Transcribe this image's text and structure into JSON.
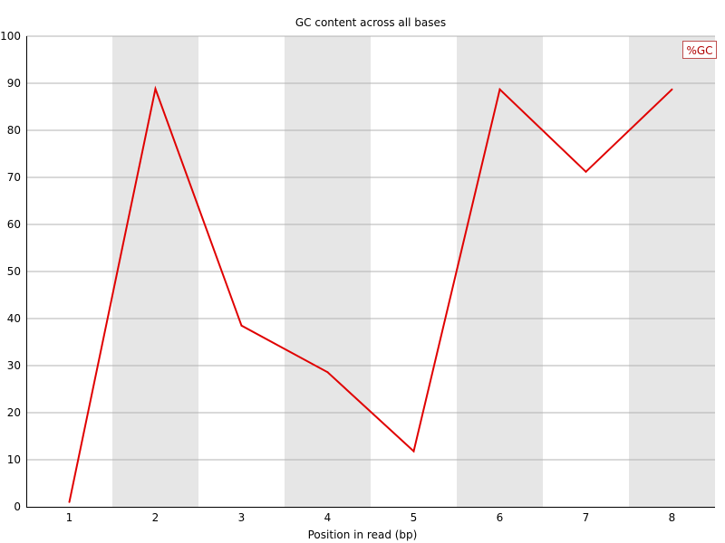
{
  "chart_data": {
    "type": "line",
    "title": "GC content across all bases",
    "xlabel": "Position in read (bp)",
    "ylabel": "",
    "x": [
      "1",
      "2",
      "3",
      "4",
      "5",
      "6",
      "7",
      "8"
    ],
    "series": [
      {
        "name": "%GC",
        "values": [
          1,
          88.8,
          38.5,
          28.6,
          11.8,
          88.7,
          71.2,
          88.7
        ]
      }
    ],
    "ylim": [
      0,
      100
    ],
    "yticks": [
      "0",
      "10",
      "20",
      "30",
      "40",
      "50",
      "60",
      "70",
      "80",
      "90",
      "100"
    ],
    "grid": true,
    "legend_position": "top-right",
    "colors": {
      "line": "#e00000",
      "band": "#e6e6e6",
      "grid": "#b3b3b3",
      "legend_border": "#c05050",
      "legend_text": "#b00000"
    }
  }
}
